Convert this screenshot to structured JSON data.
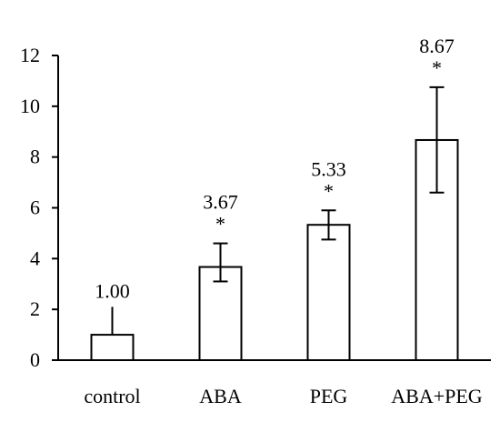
{
  "chart_data": {
    "type": "bar",
    "categories": [
      "control",
      "ABA",
      "PEG",
      "ABA+PEG"
    ],
    "values": [
      1.0,
      3.67,
      5.33,
      8.67
    ],
    "error_upper": [
      2.1,
      4.6,
      5.9,
      10.75
    ],
    "error_lower": [
      null,
      3.1,
      4.75,
      6.6
    ],
    "value_labels": [
      "1.00",
      "3.67",
      "5.33",
      "8.67"
    ],
    "significance": [
      "",
      "*",
      "*",
      "*"
    ],
    "ylim": [
      0,
      12
    ],
    "yticks": [
      0,
      2,
      4,
      6,
      8,
      10,
      12
    ],
    "title": "",
    "xlabel": "",
    "ylabel": "",
    "grid": false,
    "bar_fill": "#ffffff",
    "bar_stroke": "#000000"
  }
}
